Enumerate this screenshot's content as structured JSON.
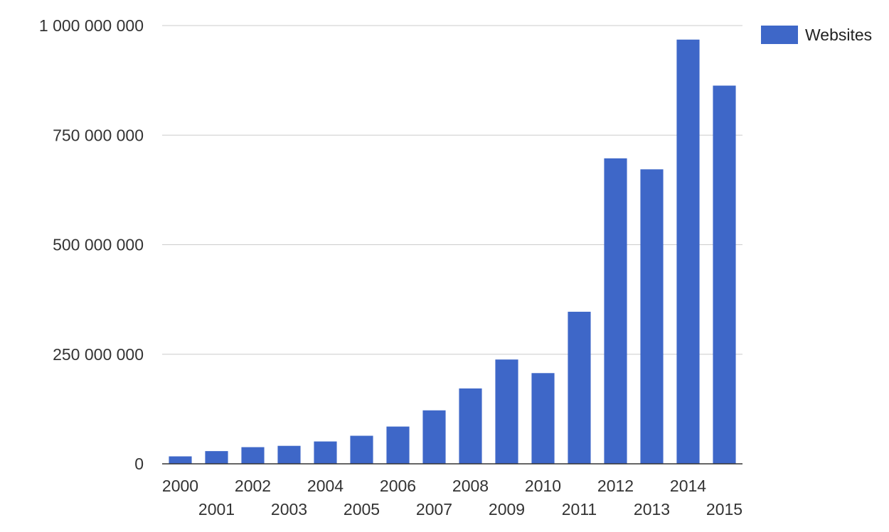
{
  "chart_data": {
    "type": "bar",
    "categories": [
      "2000",
      "2001",
      "2002",
      "2003",
      "2004",
      "2005",
      "2006",
      "2007",
      "2008",
      "2009",
      "2010",
      "2011",
      "2012",
      "2013",
      "2014",
      "2015"
    ],
    "series": [
      {
        "name": "Websites",
        "color": "#3e67c8",
        "values": [
          17000000,
          29000000,
          38000000,
          41000000,
          51000000,
          64000000,
          85000000,
          122000000,
          172000000,
          238000000,
          207000000,
          347000000,
          697000000,
          672000000,
          968000000,
          863000000
        ]
      }
    ],
    "y_ticks": [
      0,
      250000000,
      500000000,
      750000000,
      1000000000
    ],
    "y_tick_labels": [
      "0",
      "250 000 000",
      "500 000 000",
      "750 000 000",
      "1 000 000 000"
    ],
    "ylim": [
      0,
      1000000000
    ],
    "grid": true,
    "legend_position": "top-right",
    "title": "",
    "xlabel": "",
    "ylabel": ""
  }
}
